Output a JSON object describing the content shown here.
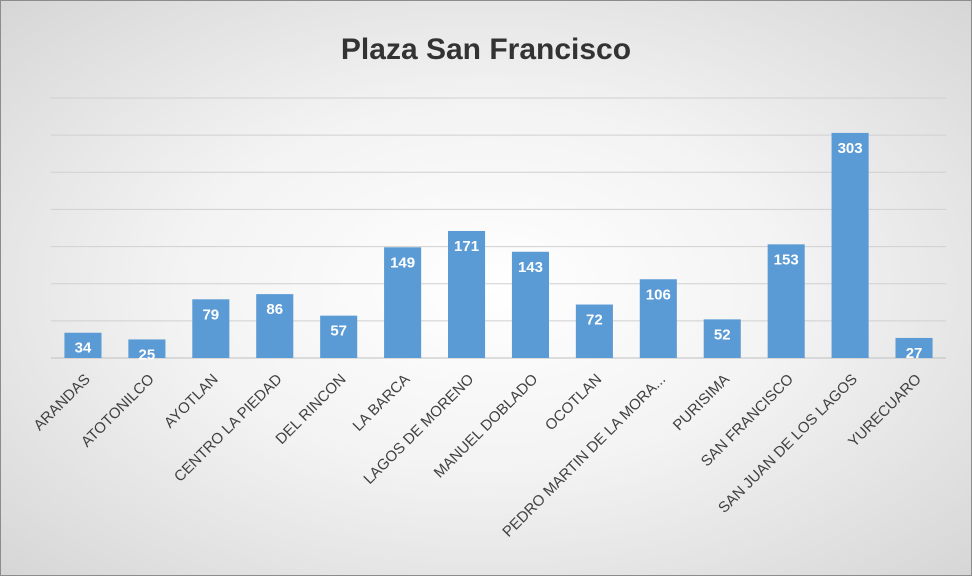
{
  "chart_data": {
    "type": "bar",
    "title": "Plaza San Francisco",
    "xlabel": "",
    "ylabel": "",
    "categories": [
      "ARANDAS",
      "ATOTONILCO",
      "AYOTLAN",
      "CENTRO LA PIEDAD",
      "DEL RINCON",
      "LA BARCA",
      "LAGOS DE MORENO",
      "MANUEL DOBLADO",
      "OCOTLAN",
      "PEDRO MARTIN DE LA MORA...",
      "PURISIMA",
      "SAN FRANCISCO",
      "SAN JUAN DE LOS LAGOS",
      "YURECUARO"
    ],
    "values": [
      34,
      25,
      79,
      86,
      57,
      149,
      171,
      143,
      72,
      106,
      52,
      153,
      303,
      27
    ],
    "ylim": [
      0,
      350
    ],
    "y_gridline_step": 50,
    "grid": true,
    "legend": "none",
    "data_labels": true,
    "colors": {
      "bar": "#5b9bd5",
      "data_label": "#ffffff",
      "gridline": "#d0d0d0",
      "title": "#333333",
      "category_label": "#404040"
    }
  }
}
